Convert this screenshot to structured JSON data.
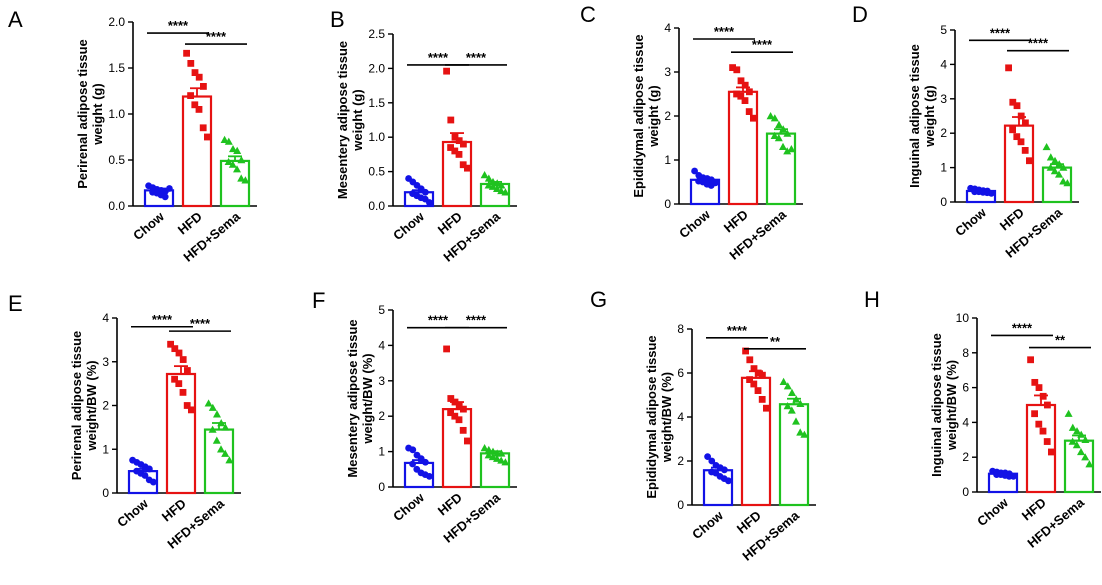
{
  "chart_data": [
    {
      "panel": "A",
      "type": "bar",
      "ylabel": [
        "Perirenal adipose tissue",
        "weight (g)"
      ],
      "yticks": [
        "0.0",
        "0.5",
        "1.0",
        "1.5",
        "2.0"
      ],
      "ylim": [
        0,
        2.0
      ],
      "categories": [
        "Chow",
        "HFD",
        "HFD+Sema"
      ],
      "means": [
        0.17,
        1.19,
        0.49
      ],
      "sem": [
        0.02,
        0.09,
        0.05
      ],
      "points": [
        [
          0.22,
          0.2,
          0.18,
          0.17,
          0.16,
          0.15,
          0.14,
          0.12,
          0.1,
          0.19
        ],
        [
          1.66,
          1.55,
          1.45,
          1.4,
          1.3,
          1.2,
          1.1,
          1.05,
          0.85,
          0.75
        ],
        [
          0.72,
          0.7,
          0.62,
          0.6,
          0.5,
          0.48,
          0.45,
          0.4,
          0.3,
          0.28
        ]
      ],
      "significance": [
        {
          "from": 0,
          "to": 1,
          "label": "****",
          "y": 1.88
        },
        {
          "from": 1,
          "to": 2,
          "label": "****",
          "y": 1.76
        }
      ]
    },
    {
      "panel": "B",
      "type": "bar",
      "ylabel": [
        "Mesentery adipose tissue",
        "weight (g)"
      ],
      "yticks": [
        "0.0",
        "0.5",
        "1.0",
        "1.5",
        "2.0",
        "2.5"
      ],
      "ylim": [
        0,
        2.5
      ],
      "categories": [
        "Chow",
        "HFD",
        "HFD+Sema"
      ],
      "means": [
        0.2,
        0.93,
        0.32
      ],
      "sem": [
        0.03,
        0.13,
        0.03
      ],
      "points": [
        [
          0.4,
          0.35,
          0.3,
          0.25,
          0.2,
          0.18,
          0.15,
          0.12,
          0.1,
          0.05
        ],
        [
          1.96,
          1.25,
          1.0,
          0.95,
          0.9,
          0.85,
          0.8,
          0.75,
          0.6,
          0.55
        ],
        [
          0.45,
          0.4,
          0.35,
          0.33,
          0.3,
          0.3,
          0.28,
          0.25,
          0.22,
          0.2
        ]
      ],
      "significance": [
        {
          "from": 0,
          "to": 1,
          "label": "****",
          "y": 2.05
        },
        {
          "from": 1,
          "to": 2,
          "label": "****",
          "y": 2.05
        }
      ]
    },
    {
      "panel": "C",
      "type": "bar",
      "ylabel": [
        "Epididymal adipose tissue",
        "weight (g)"
      ],
      "yticks": [
        "0",
        "1",
        "2",
        "3",
        "4"
      ],
      "ylim": [
        0,
        4
      ],
      "categories": [
        "Chow",
        "HFD",
        "HFD+Sema"
      ],
      "means": [
        0.55,
        2.55,
        1.6
      ],
      "sem": [
        0.04,
        0.1,
        0.1
      ],
      "points": [
        [
          0.75,
          0.65,
          0.6,
          0.58,
          0.55,
          0.52,
          0.5,
          0.45,
          0.42,
          0.48
        ],
        [
          3.1,
          3.05,
          2.8,
          2.7,
          2.55,
          2.5,
          2.45,
          2.35,
          2.1,
          1.95
        ],
        [
          2.0,
          1.95,
          1.8,
          1.7,
          1.6,
          1.55,
          1.5,
          1.3,
          1.2,
          1.25
        ]
      ],
      "significance": [
        {
          "from": 0,
          "to": 1,
          "label": "****",
          "y": 3.75
        },
        {
          "from": 1,
          "to": 2,
          "label": "****",
          "y": 3.45
        }
      ]
    },
    {
      "panel": "D",
      "type": "bar",
      "ylabel": [
        "Inguinal adipose tissue",
        "weight (g)"
      ],
      "yticks": [
        "0",
        "1",
        "2",
        "3",
        "4",
        "5"
      ],
      "ylim": [
        0,
        5
      ],
      "categories": [
        "Chow",
        "HFD",
        "HFD+Sema"
      ],
      "means": [
        0.32,
        2.22,
        1.0
      ],
      "sem": [
        0.02,
        0.25,
        0.1
      ],
      "points": [
        [
          0.4,
          0.38,
          0.35,
          0.33,
          0.32,
          0.3,
          0.3,
          0.28,
          0.27,
          0.25
        ],
        [
          3.9,
          2.9,
          2.8,
          2.5,
          2.3,
          2.1,
          1.9,
          1.75,
          1.5,
          1.2
        ],
        [
          1.6,
          1.3,
          1.2,
          1.1,
          1.0,
          1.0,
          0.9,
          0.8,
          0.6,
          0.55
        ]
      ],
      "significance": [
        {
          "from": 0,
          "to": 1,
          "label": "****",
          "y": 4.7
        },
        {
          "from": 1,
          "to": 2,
          "label": "****",
          "y": 4.4
        }
      ]
    },
    {
      "panel": "E",
      "type": "bar",
      "ylabel": [
        "Perirenal adipose tissue",
        "weight/BW (%)"
      ],
      "yticks": [
        "0",
        "1",
        "2",
        "3",
        "4"
      ],
      "ylim": [
        0,
        4
      ],
      "categories": [
        "Chow",
        "HFD",
        "HFD+Sema"
      ],
      "means": [
        0.5,
        2.72,
        1.45
      ],
      "sem": [
        0.05,
        0.18,
        0.15
      ],
      "points": [
        [
          0.75,
          0.7,
          0.65,
          0.6,
          0.55,
          0.5,
          0.45,
          0.4,
          0.3,
          0.25
        ],
        [
          3.4,
          3.3,
          3.2,
          3.05,
          2.8,
          2.6,
          2.5,
          2.3,
          2.0,
          1.9
        ],
        [
          2.05,
          1.95,
          1.8,
          1.6,
          1.5,
          1.45,
          1.2,
          1.0,
          0.9,
          0.75
        ]
      ],
      "significance": [
        {
          "from": 0,
          "to": 1,
          "label": "****",
          "y": 3.8
        },
        {
          "from": 1,
          "to": 2,
          "label": "****",
          "y": 3.7
        }
      ]
    },
    {
      "panel": "F",
      "type": "bar",
      "ylabel": [
        "Mesentery adipose tissue",
        "weight/BW (%)"
      ],
      "yticks": [
        "0",
        "1",
        "2",
        "3",
        "4",
        "5"
      ],
      "ylim": [
        0,
        5
      ],
      "categories": [
        "Chow",
        "HFD",
        "HFD+Sema"
      ],
      "means": [
        0.68,
        2.2,
        0.95
      ],
      "sem": [
        0.08,
        0.2,
        0.06
      ],
      "points": [
        [
          1.1,
          1.05,
          0.9,
          0.8,
          0.7,
          0.65,
          0.5,
          0.4,
          0.35,
          0.3
        ],
        [
          3.9,
          2.5,
          2.4,
          2.3,
          2.2,
          2.1,
          2.0,
          1.9,
          1.6,
          1.3
        ],
        [
          1.1,
          1.05,
          1.0,
          0.95,
          0.95,
          0.9,
          0.85,
          0.8,
          0.75,
          0.7
        ]
      ],
      "significance": [
        {
          "from": 0,
          "to": 1,
          "label": "****",
          "y": 4.5
        },
        {
          "from": 1,
          "to": 2,
          "label": "****",
          "y": 4.5
        }
      ]
    },
    {
      "panel": "G",
      "type": "bar",
      "ylabel": [
        "Epididymal adipose tissue",
        "weight/BW  (%)"
      ],
      "yticks": [
        "0",
        "2",
        "4",
        "6",
        "8"
      ],
      "ylim": [
        0,
        8
      ],
      "categories": [
        "Chow",
        "HFD",
        "HFD+Sema"
      ],
      "means": [
        1.58,
        5.78,
        4.58
      ],
      "sem": [
        0.12,
        0.3,
        0.25
      ],
      "points": [
        [
          2.2,
          2.0,
          1.8,
          1.7,
          1.6,
          1.5,
          1.45,
          1.3,
          1.2,
          1.1
        ],
        [
          7.0,
          6.6,
          6.2,
          6.0,
          5.9,
          5.7,
          5.5,
          5.2,
          4.8,
          4.4
        ],
        [
          5.6,
          5.4,
          5.1,
          4.8,
          4.6,
          4.5,
          4.3,
          3.8,
          3.3,
          3.2
        ]
      ],
      "significance": [
        {
          "from": 0,
          "to": 1,
          "label": "****",
          "y": 7.6
        },
        {
          "from": 1,
          "to": 2,
          "label": "**",
          "y": 7.1
        }
      ]
    },
    {
      "panel": "H",
      "type": "bar",
      "ylabel": [
        "Inguinal adipose tissue",
        "weight/BW (%)"
      ],
      "yticks": [
        "0",
        "2",
        "4",
        "6",
        "8",
        "10"
      ],
      "ylim": [
        0,
        10
      ],
      "categories": [
        "Chow",
        "HFD",
        "HFD+Sema"
      ],
      "means": [
        1.05,
        5.0,
        2.95
      ],
      "sem": [
        0.05,
        0.55,
        0.3
      ],
      "points": [
        [
          1.2,
          1.15,
          1.1,
          1.1,
          1.05,
          1.0,
          1.0,
          0.95,
          0.9,
          0.9
        ],
        [
          7.6,
          6.3,
          6.0,
          5.5,
          5.0,
          4.5,
          3.9,
          3.5,
          2.9,
          2.3
        ],
        [
          4.5,
          3.7,
          3.5,
          3.3,
          3.0,
          2.9,
          2.7,
          2.3,
          2.0,
          1.6
        ]
      ],
      "significance": [
        {
          "from": 0,
          "to": 1,
          "label": "****",
          "y": 9.0
        },
        {
          "from": 1,
          "to": 2,
          "label": "**",
          "y": 8.3
        }
      ]
    }
  ],
  "colors": {
    "Chow": "#1212E6",
    "HFD": "#E61212",
    "HFD+Sema": "#1FC21F"
  },
  "markers": {
    "Chow": "circle",
    "HFD": "square",
    "HFD+Sema": "triangle"
  }
}
